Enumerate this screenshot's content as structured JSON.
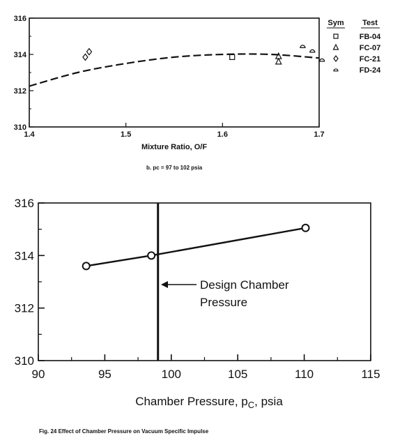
{
  "chart_data": [
    {
      "type": "scatter",
      "xlabel": "Mixture Ratio, O/F",
      "ylabel": "",
      "xlim": [
        1.4,
        1.7
      ],
      "ylim": [
        310,
        316
      ],
      "x_ticks": [
        "1.4",
        "1.5",
        "1.6",
        "1.7"
      ],
      "y_ticks": [
        "310",
        "312",
        "314",
        "316"
      ],
      "caption": "b.  pc  =  97 to 102 psia",
      "legend": {
        "position": "right",
        "headers": {
          "sym": "Sym",
          "test": "Test"
        },
        "entries": [
          {
            "marker": "square",
            "test": "FB-04"
          },
          {
            "marker": "triangle",
            "test": "FC-07"
          },
          {
            "marker": "diamond",
            "test": "FC-21"
          },
          {
            "marker": "half-circle",
            "test": "FD-24"
          }
        ]
      },
      "series": [
        {
          "test": "FB-04",
          "marker": "square",
          "points": [
            [
              1.61,
              313.85
            ]
          ]
        },
        {
          "test": "FC-07",
          "marker": "triangle",
          "points": [
            [
              1.658,
              313.6
            ],
            [
              1.658,
              313.9
            ]
          ]
        },
        {
          "test": "FC-21",
          "marker": "diamond",
          "points": [
            [
              1.458,
              313.85
            ],
            [
              1.462,
              314.15
            ]
          ]
        },
        {
          "test": "FD-24",
          "marker": "half-circle",
          "points": [
            [
              1.683,
              314.45
            ],
            [
              1.693,
              314.2
            ],
            [
              1.703,
              313.7
            ]
          ]
        }
      ],
      "fit_curve": {
        "style": "dashed",
        "points": [
          [
            1.4,
            312.25
          ],
          [
            1.45,
            313.0
          ],
          [
            1.5,
            313.5
          ],
          [
            1.55,
            313.85
          ],
          [
            1.6,
            314.0
          ],
          [
            1.65,
            314.0
          ],
          [
            1.7,
            313.8
          ]
        ]
      }
    },
    {
      "type": "line",
      "xlabel": "Chamber Pressure, pC, psia",
      "ylabel": "",
      "xlim": [
        90,
        115
      ],
      "ylim": [
        310,
        316
      ],
      "x_ticks": [
        "90",
        "95",
        "100",
        "105",
        "110",
        "115"
      ],
      "y_ticks": [
        "310",
        "312",
        "314",
        "316"
      ],
      "series": [
        {
          "marker": "circle",
          "x": [
            93.6,
            98.5,
            110.1
          ],
          "y": [
            313.6,
            314.0,
            315.05
          ]
        }
      ],
      "design_line": {
        "x": 99.0,
        "label_line1": "Design Chamber",
        "label_line2": "Pressure"
      }
    }
  ],
  "figure_caption": "Fig. 24  Effect of Chamber Pressure on Vacuum Specific Impulse"
}
